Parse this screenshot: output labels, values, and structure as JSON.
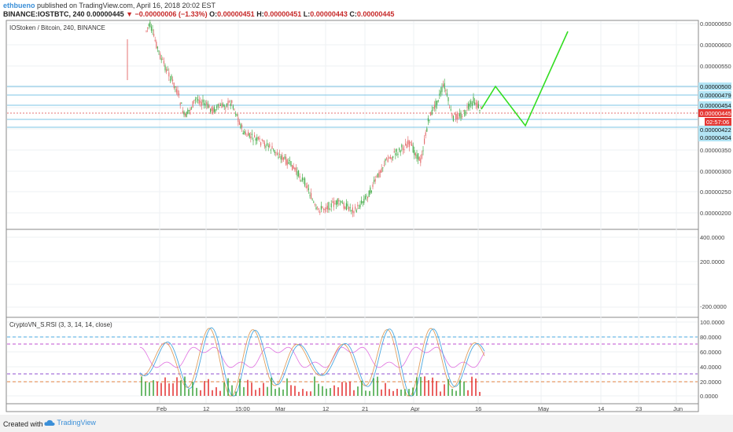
{
  "header": {
    "author": "ethbueno",
    "published_text": "published on TradingView.com, April 16, 2018 20:02 EST",
    "symbol": "BINANCE:IOSTBTC, 240",
    "last_price": "0.00000445",
    "arrow": "▼",
    "change": "−0.00000006 (−1.33%)",
    "o_label": "O:",
    "o_value": "0.00000451",
    "h_label": "H:",
    "h_value": "0.00000451",
    "l_label": "L:",
    "l_value": "0.00000443",
    "c_label": "C:",
    "c_value": "0.00000445"
  },
  "main_pane": {
    "title": "IOStoken / Bitcoin, 240, BINANCE",
    "price_ticks": [
      "0.00000650",
      "0.00000600",
      "0.00000550",
      "0.00000350",
      "0.00000300",
      "0.00000250",
      "0.00000200"
    ],
    "tags": [
      {
        "label": "0.00000500",
        "kind": "blue"
      },
      {
        "label": "0.00000479",
        "kind": "blue"
      },
      {
        "label": "0.00000454",
        "kind": "blue"
      },
      {
        "label": "0.00000445",
        "kind": "red"
      },
      {
        "label": "02:57:06",
        "kind": "red"
      },
      {
        "label": "0.00000422",
        "kind": "blue"
      },
      {
        "label": "0.00000404",
        "kind": "blue"
      }
    ]
  },
  "middle_pane": {
    "ticks": [
      "400.0000",
      "200.0000",
      "-200.0000"
    ]
  },
  "rsi_pane": {
    "title": "CryptoVN_S.RSI (3, 3, 14, 14, close)",
    "ticks": [
      "100.0000",
      "80.0000",
      "60.0000",
      "40.0000",
      "20.0000",
      "0.0000"
    ]
  },
  "time_axis": [
    "Feb",
    "12",
    "15:00",
    "Mar",
    "12",
    "21",
    "Apr",
    "16",
    "May",
    "14",
    "23",
    "Jun"
  ],
  "footer": {
    "created_with": "Created with",
    "brand": "TradingView"
  },
  "colors": {
    "up": "#4caf50",
    "down": "#e57373",
    "projection": "#33dd22",
    "tag_blue": "#b3e5f5",
    "tag_red": "#e53935",
    "rsi_blue": "#4aa8e0",
    "rsi_orange": "#e0a060",
    "rsi_pink": "#e070e0"
  }
}
